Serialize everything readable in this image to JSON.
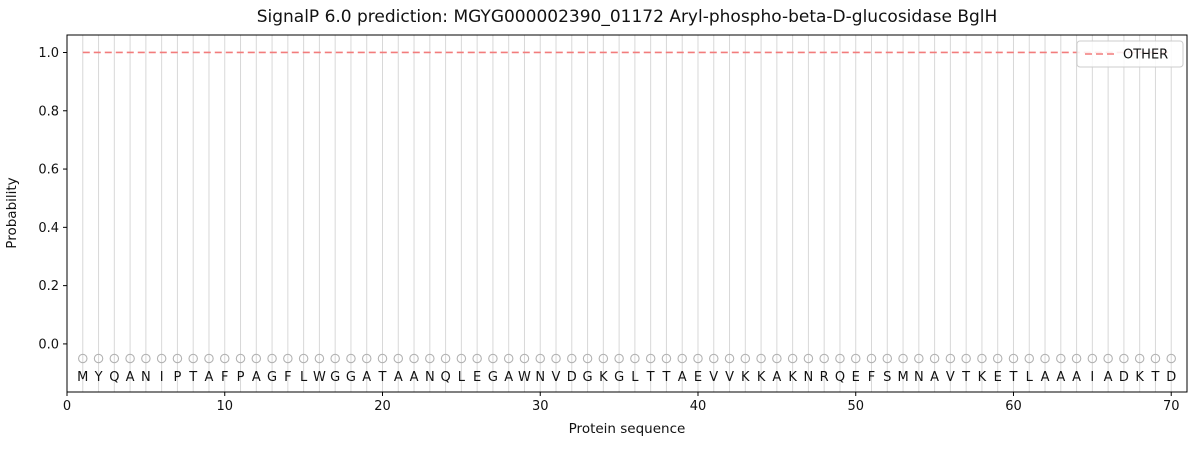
{
  "chart_data": {
    "type": "line",
    "title": "SignalP 6.0 prediction: MGYG000002390_01172 Aryl-phospho-beta-D-glucosidase BglH",
    "xlabel": "Protein sequence",
    "ylabel": "Probability",
    "xlim": [
      0,
      71
    ],
    "ylim": [
      -0.165,
      1.06
    ],
    "xticks": [
      0,
      10,
      20,
      30,
      40,
      50,
      60,
      70
    ],
    "yticks": [
      0.0,
      0.2,
      0.4,
      0.6,
      0.8,
      1.0
    ],
    "grid": "vertical-line-per-residue",
    "grid_color": "#d8d8d8",
    "frame_color": "#000000",
    "legend_position": "upper right",
    "sequence": "MYQANIPTAFPAGFLWGGATAANQLEGAWNVDGKGLTTAEVVKKAKNRQEFSMNAVTKETLAAAIADKTD",
    "marker_y": -0.05,
    "letter_y": -0.128,
    "marker_color": "#b3b3b3",
    "series": [
      {
        "name": "OTHER",
        "style": "dashed",
        "color": "#f27c7c",
        "values": [
          1.0,
          1.0,
          1.0,
          1.0,
          1.0,
          1.0,
          1.0,
          1.0,
          1.0,
          1.0,
          1.0,
          1.0,
          1.0,
          1.0,
          1.0,
          1.0,
          1.0,
          1.0,
          1.0,
          1.0,
          1.0,
          1.0,
          1.0,
          1.0,
          1.0,
          1.0,
          1.0,
          1.0,
          1.0,
          1.0,
          1.0,
          1.0,
          1.0,
          1.0,
          1.0,
          1.0,
          1.0,
          1.0,
          1.0,
          1.0,
          1.0,
          1.0,
          1.0,
          1.0,
          1.0,
          1.0,
          1.0,
          1.0,
          1.0,
          1.0,
          1.0,
          1.0,
          1.0,
          1.0,
          1.0,
          1.0,
          1.0,
          1.0,
          1.0,
          1.0,
          1.0,
          1.0,
          1.0,
          1.0,
          1.0,
          1.0,
          1.0,
          1.0,
          1.0,
          1.0
        ]
      }
    ]
  }
}
